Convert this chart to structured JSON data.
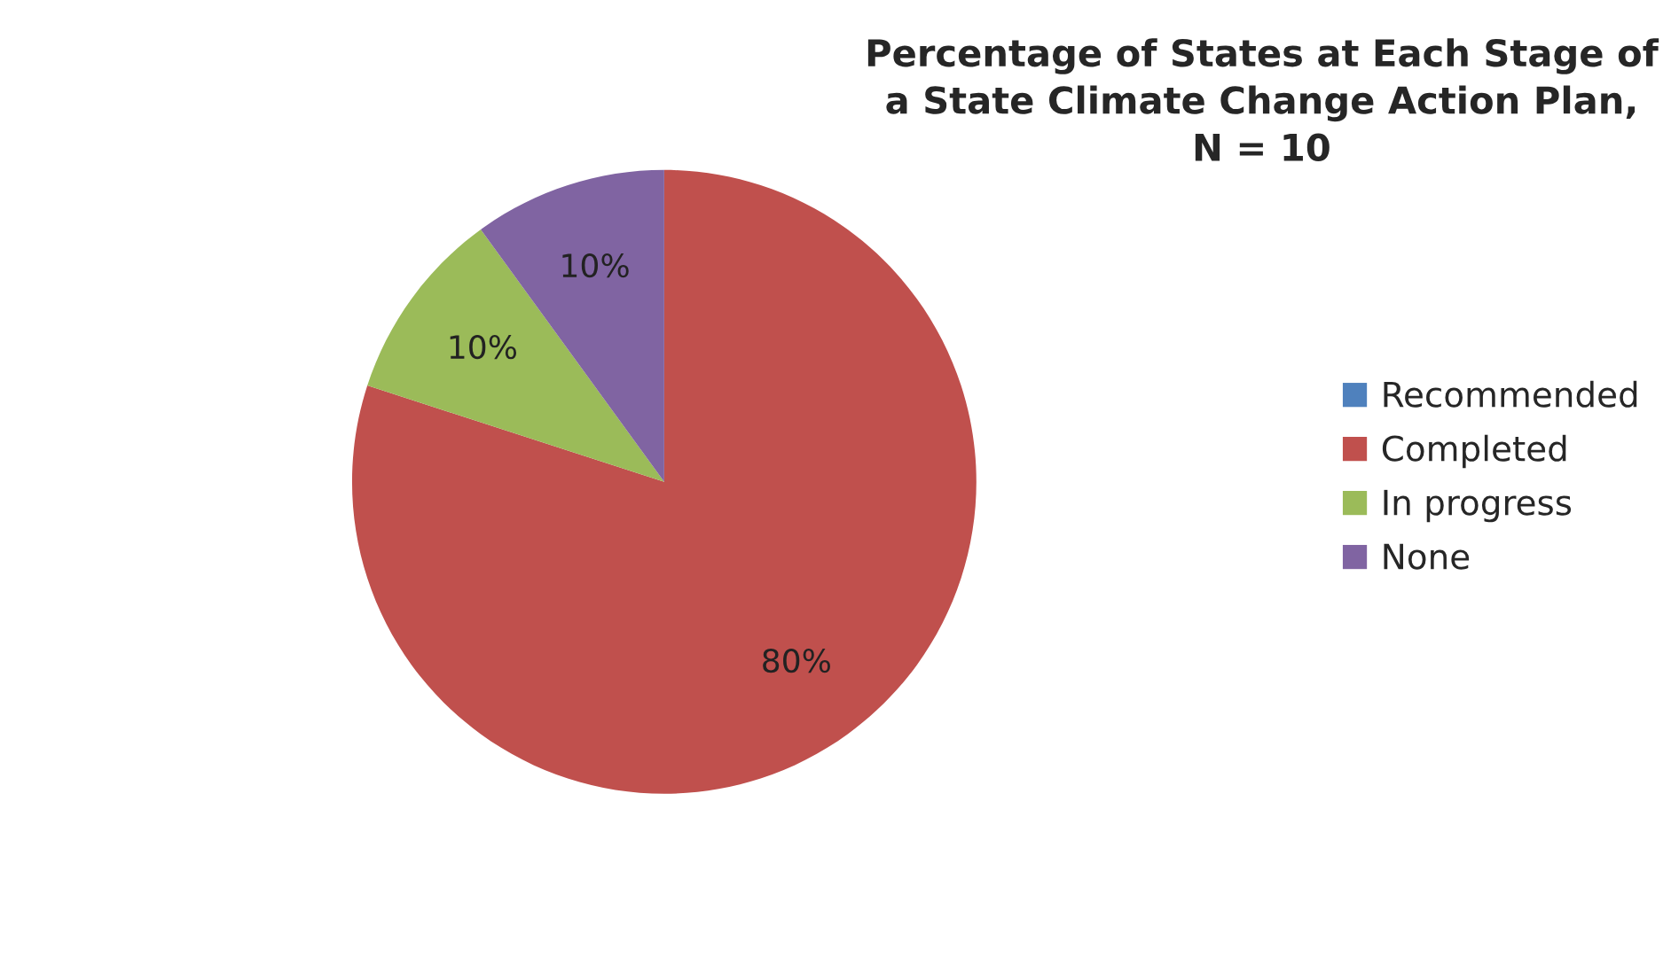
{
  "chart_data": {
    "type": "pie",
    "title": "Percentage of States at Each Stage of\na State Climate Change Action Plan,\nN = 10",
    "categories": [
      "Recommended",
      "Completed",
      "In progress",
      "None"
    ],
    "values": [
      0,
      80,
      10,
      10
    ],
    "colors": [
      "#4f81bd",
      "#c0504d",
      "#9bbb59",
      "#8064a2"
    ],
    "value_labels": [
      null,
      "80%",
      "10%",
      "10%"
    ],
    "legend": "right"
  }
}
